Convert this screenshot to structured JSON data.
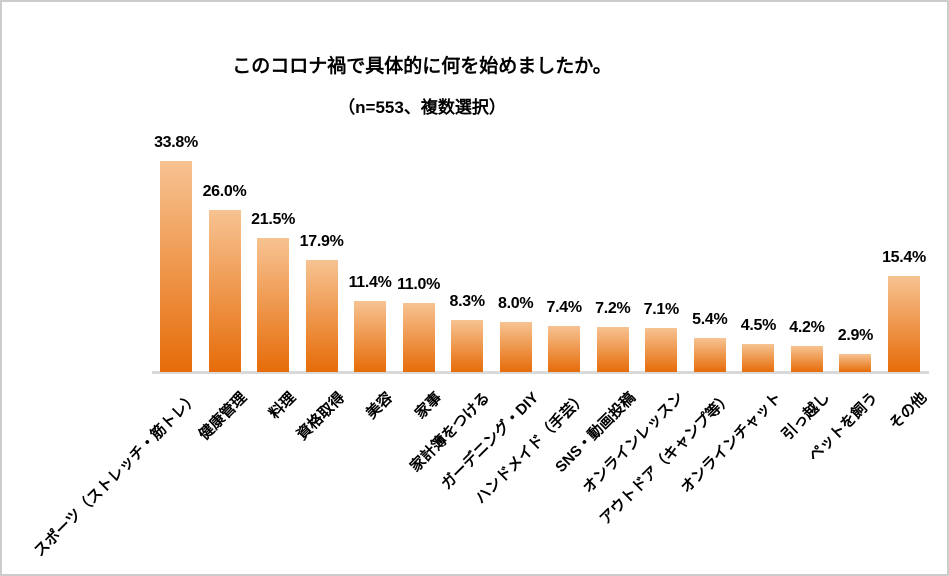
{
  "chart_data": {
    "type": "bar",
    "title": "このコロナ禍で具体的に何を始めましたか。",
    "subtitle": "（n=553、複数選択）",
    "categories": [
      "スポーツ（ストレッチ・筋トレ）",
      "健康管理",
      "料理",
      "資格取得",
      "美容",
      "家事",
      "家計簿をつける",
      "ガーデニング・DIY",
      "ハンドメイド（手芸）",
      "SNS・動画投稿",
      "オンラインレッスン",
      "アウトドア（キャンプ等）",
      "オンラインチャット",
      "引っ越し",
      "ペットを飼う",
      "その他"
    ],
    "values": [
      33.8,
      26.0,
      21.5,
      17.9,
      11.4,
      11.0,
      8.3,
      8.0,
      7.4,
      7.2,
      7.1,
      5.4,
      4.5,
      4.2,
      2.9,
      15.4
    ],
    "value_labels": [
      "33.8%",
      "26.0%",
      "21.5%",
      "17.9%",
      "11.4%",
      "11.0%",
      "8.3%",
      "8.0%",
      "7.4%",
      "7.2%",
      "7.1%",
      "5.4%",
      "4.5%",
      "4.2%",
      "2.9%",
      "15.4%"
    ],
    "xlabel": "",
    "ylabel": "",
    "ylim": [
      0,
      35
    ],
    "grid": false,
    "legend": "none",
    "label_rotation_deg": 45,
    "colors": {
      "bar_gradient_top": "#F7C392",
      "bar_gradient_bottom": "#E66C09",
      "axis_line": "#D9D9D9",
      "text": "#000000",
      "frame_border": "#CCCCCC"
    }
  }
}
